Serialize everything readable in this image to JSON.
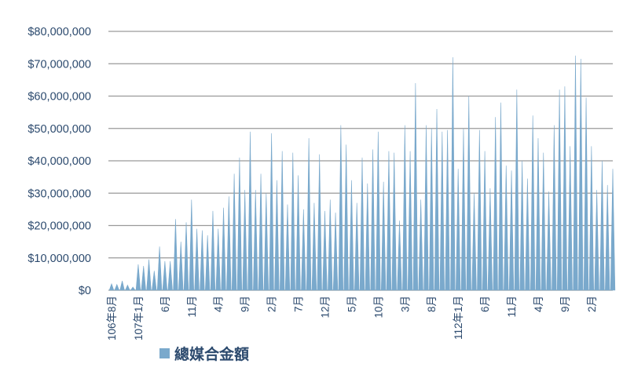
{
  "chart_data": {
    "type": "area",
    "title": "",
    "xlabel": "",
    "ylabel": "",
    "ylim": [
      0,
      80000000
    ],
    "yticks": [
      {
        "value": 0,
        "label": "$0"
      },
      {
        "value": 10000000,
        "label": "$10,000,000"
      },
      {
        "value": 20000000,
        "label": "$20,000,000"
      },
      {
        "value": 30000000,
        "label": "$30,000,000"
      },
      {
        "value": 40000000,
        "label": "$40,000,000"
      },
      {
        "value": 50000000,
        "label": "$50,000,000"
      },
      {
        "value": 60000000,
        "label": "$60,000,000"
      },
      {
        "value": 70000000,
        "label": "$70,000,000"
      },
      {
        "value": 80000000,
        "label": "$80,000,000"
      }
    ],
    "xticks": [
      {
        "index": 0,
        "label": "106年8月"
      },
      {
        "index": 5,
        "label": "107年1月"
      },
      {
        "index": 10,
        "label": "6月"
      },
      {
        "index": 15,
        "label": "11月"
      },
      {
        "index": 20,
        "label": "4月"
      },
      {
        "index": 25,
        "label": "9月"
      },
      {
        "index": 30,
        "label": "2月"
      },
      {
        "index": 35,
        "label": "7月"
      },
      {
        "index": 40,
        "label": "12月"
      },
      {
        "index": 45,
        "label": "5月"
      },
      {
        "index": 50,
        "label": "10月"
      },
      {
        "index": 55,
        "label": "3月"
      },
      {
        "index": 60,
        "label": "8月"
      },
      {
        "index": 65,
        "label": "112年1月"
      },
      {
        "index": 70,
        "label": "6月"
      },
      {
        "index": 75,
        "label": "11月"
      },
      {
        "index": 80,
        "label": "4月"
      },
      {
        "index": 85,
        "label": "9月"
      },
      {
        "index": 90,
        "label": "2月"
      }
    ],
    "grid": true,
    "legend_position": "bottom",
    "color": "#7aa9cc",
    "series": [
      {
        "name": "總媒合金額",
        "values": [
          2000000,
          1800000,
          2900000,
          1600000,
          1000000,
          8000000,
          7500000,
          9500000,
          6000000,
          13500000,
          9000000,
          9000000,
          22000000,
          15000000,
          21000000,
          28000000,
          19000000,
          18500000,
          17000000,
          24500000,
          19000000,
          25500000,
          29000000,
          36000000,
          41000000,
          31000000,
          49000000,
          31000000,
          36000000,
          30000000,
          48500000,
          34000000,
          43000000,
          26500000,
          42500000,
          35500000,
          25000000,
          47000000,
          27000000,
          42000000,
          24500000,
          28000000,
          24000000,
          51000000,
          45000000,
          34000000,
          27000000,
          41000000,
          33000000,
          43500000,
          49000000,
          33500000,
          43000000,
          42500000,
          21500000,
          51000000,
          43000000,
          64000000,
          28000000,
          51000000,
          50000000,
          56000000,
          49000000,
          49500000,
          72000000,
          37500000,
          50000000,
          60000000,
          30000000,
          49500000,
          43000000,
          31500000,
          53500000,
          58000000,
          38500000,
          37000000,
          62000000,
          40000000,
          34500000,
          54000000,
          47000000,
          42500000,
          30500000,
          51000000,
          62000000,
          63000000,
          44500000,
          72500000,
          71500000,
          59500000,
          44500000,
          31000000,
          40000000,
          32500000,
          37500000
        ]
      }
    ]
  }
}
